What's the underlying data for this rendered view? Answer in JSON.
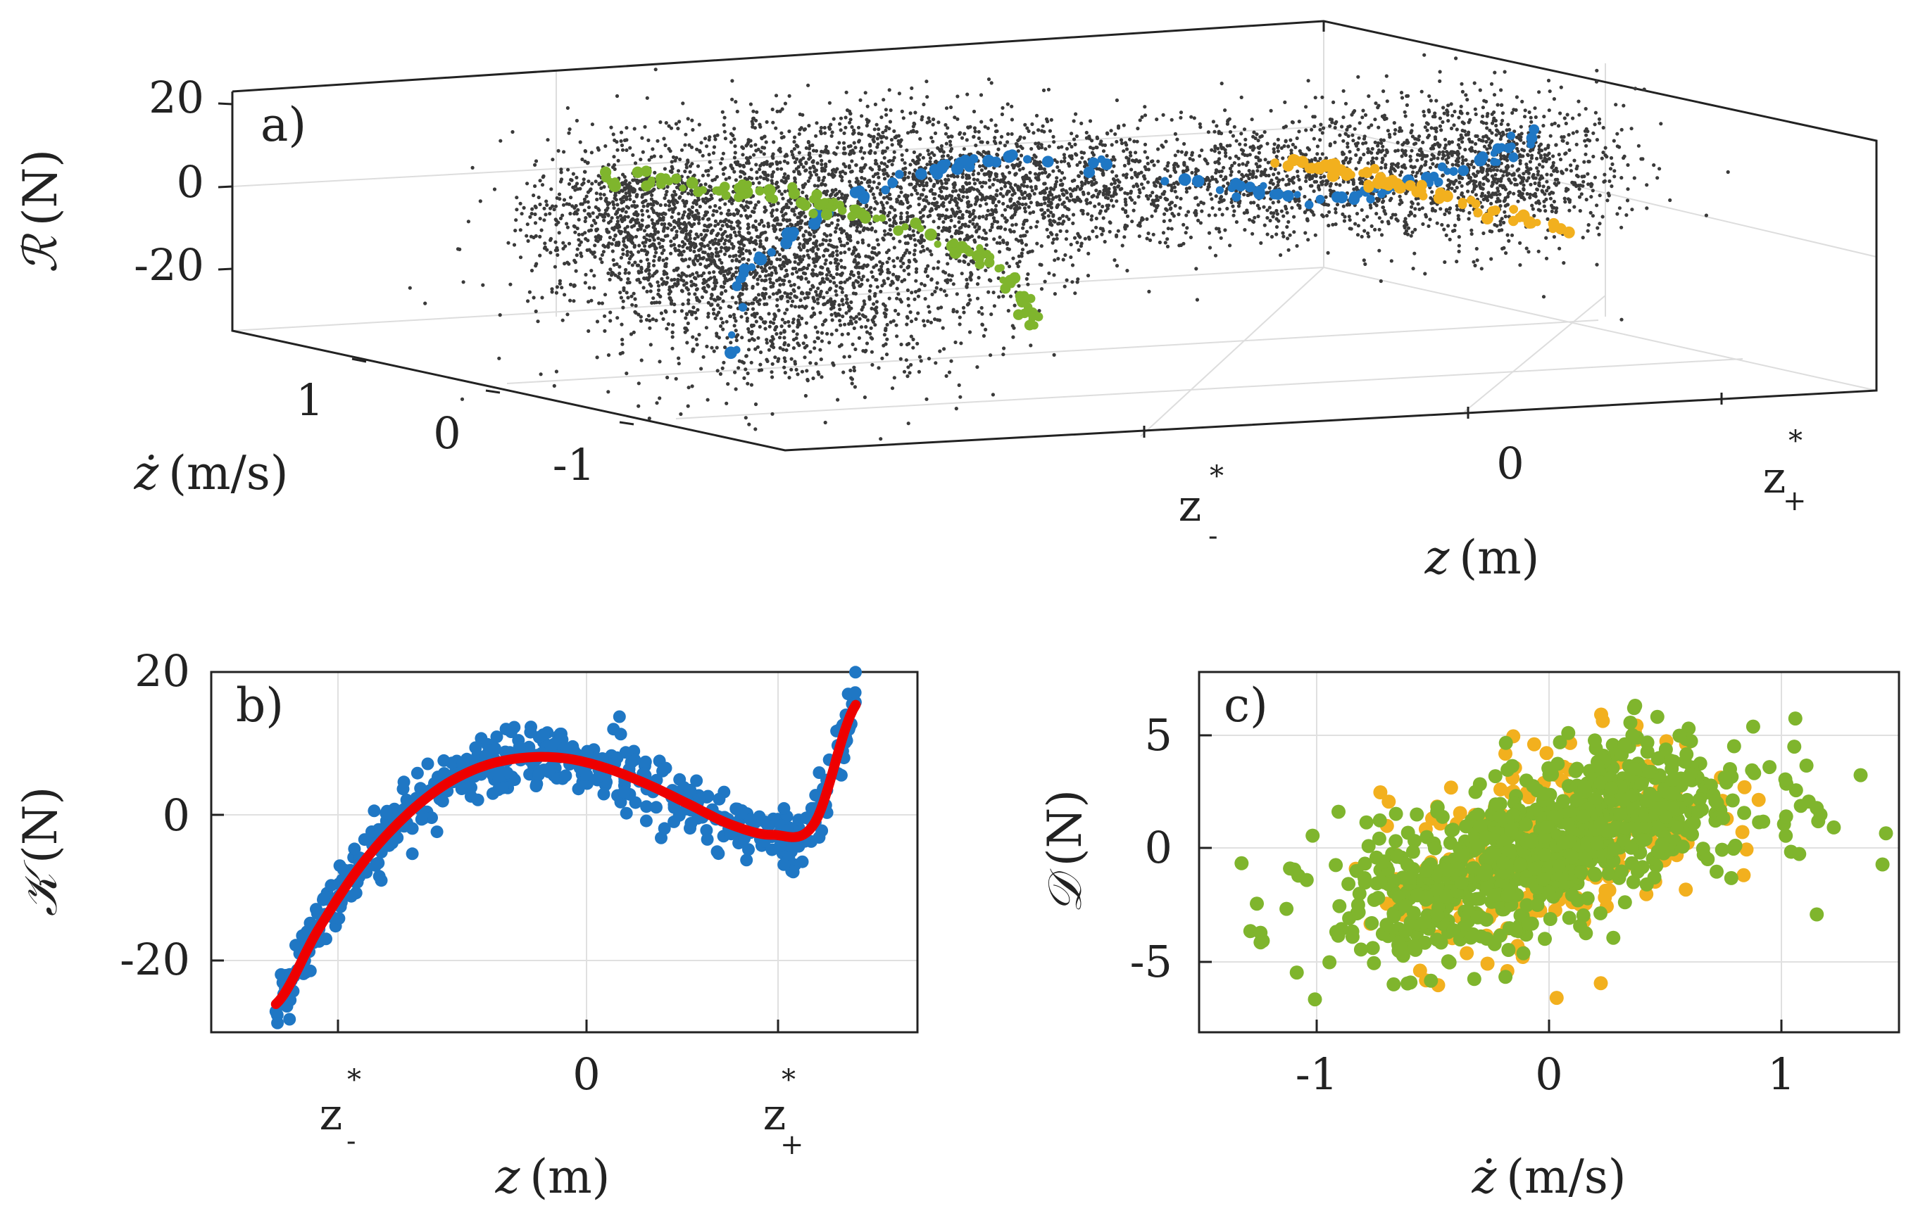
{
  "chart_data": [
    {
      "panel": "a)",
      "type": "scatter",
      "title": "",
      "xlabel": "z (m)",
      "ylabel": "ż (m/s)",
      "zlabel": "ℛ (N)",
      "x_ticks": [
        "z-*",
        "0",
        "z+*"
      ],
      "y_ticks": [
        "1",
        "0",
        "-1"
      ],
      "z_ticks": [
        "20",
        "0",
        "-20"
      ],
      "zlim": [
        -30,
        25
      ],
      "grid": true,
      "series": [
        {
          "color": "#3a3a3a",
          "marker": "dot",
          "description_points": "dense cloud of measured samples"
        },
        {
          "color": "#1f77c4",
          "marker": "circle"
        },
        {
          "color": "#7fb52d",
          "marker": "circle"
        },
        {
          "color": "#f2b01e",
          "marker": "circle"
        }
      ]
    },
    {
      "panel": "b)",
      "type": "scatter",
      "title": "",
      "xlabel": "z (m)",
      "ylabel": "𝒦 (N)",
      "x_ticks": [
        "z-*",
        "0",
        "z+*"
      ],
      "y_ticks": [
        "20",
        "0",
        "-20"
      ],
      "xlim": [
        -1.55,
        1.35
      ],
      "ylim": [
        -30,
        20
      ],
      "grid": true,
      "series": [
        {
          "color": "#1f77c4",
          "marker": "circle"
        },
        {
          "color": "#ee0000",
          "line": "fit",
          "x": [
            -1.5,
            -1.3,
            -1.1,
            -0.9,
            -0.7,
            -0.5,
            -0.3,
            -0.1,
            0.1,
            0.3,
            0.5,
            0.7,
            0.9,
            1.1,
            1.3
          ],
          "y": [
            -26.5,
            -16.3,
            -7.5,
            -0.9,
            3.9,
            6.8,
            8.0,
            7.9,
            6.5,
            4.2,
            1.4,
            -1.4,
            -2.8,
            -1.2,
            15.4
          ]
        }
      ]
    },
    {
      "panel": "c)",
      "type": "scatter",
      "title": "",
      "xlabel": "ż (m/s)",
      "ylabel": "𝒟 (N)",
      "x_ticks": [
        "-1",
        "0",
        "1"
      ],
      "y_ticks": [
        "5",
        "0",
        "-5"
      ],
      "xlim": [
        -1.5,
        1.5
      ],
      "ylim": [
        -8,
        8
      ],
      "grid": true,
      "series": [
        {
          "color": "#f2b01e",
          "marker": "circle"
        },
        {
          "color": "#7fb52d",
          "marker": "circle"
        }
      ]
    }
  ],
  "labels": {
    "a_panel": "a)",
    "b_panel": "b)",
    "c_panel": "c)",
    "a_z20": "20",
    "a_z0": "0",
    "a_zm20": "-20",
    "a_y1": "1",
    "a_y0": "0",
    "a_ym1": "-1",
    "a_x0": "0",
    "z_letter": "z",
    "star": "*",
    "minus_sub": "-",
    "plus_sub": "+",
    "b_y20": "20",
    "b_y0": "0",
    "b_ym20": "-20",
    "b_x0": "0",
    "c_y5": "5",
    "c_y0": "0",
    "c_ym5": "-5",
    "c_xm1": "-1",
    "c_x0": "0",
    "c_x1": "1",
    "R_symbol": "ℛ",
    "K_symbol": "𝒦",
    "D_symbol": "𝒟",
    "N_unit": "(N)",
    "m_unit": "(m)",
    "ms_unit": "(m/s)",
    "z_italic": "z",
    "zdot_italic": "ż"
  }
}
